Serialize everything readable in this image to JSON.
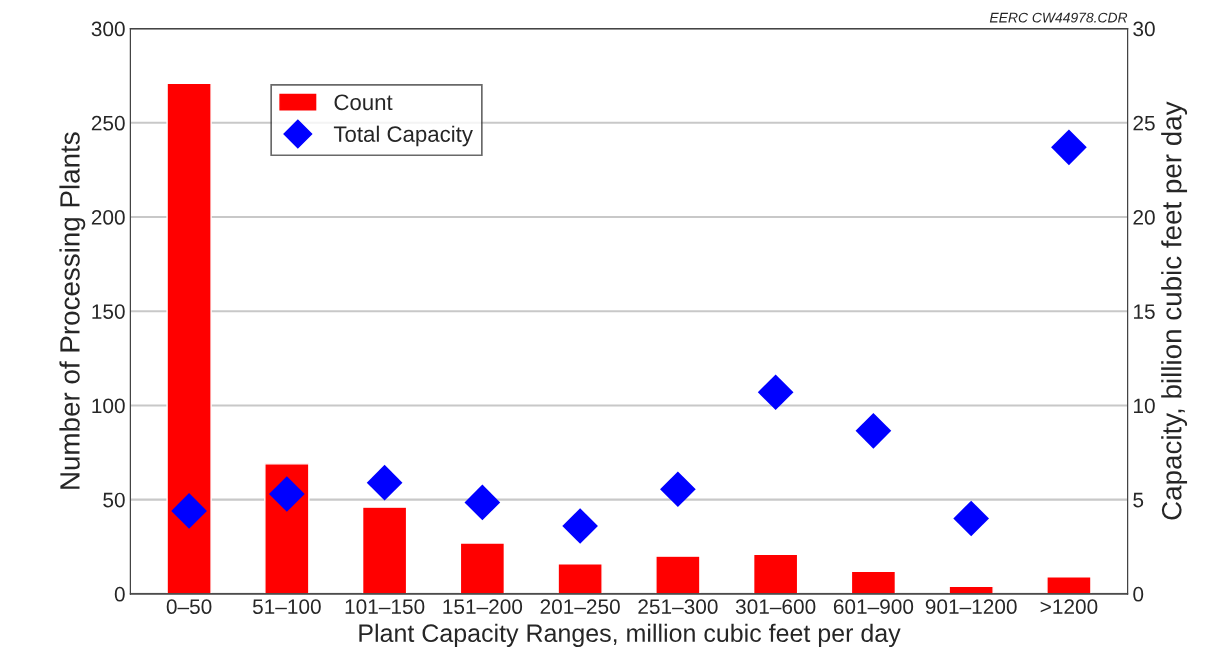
{
  "chart_data": {
    "type": "bar",
    "xlabel": "Plant Capacity Ranges, million cubic feet per day",
    "ylabel": "Number of Processing Plants",
    "y2label": "Capacity, billion cubic feet per day",
    "annotations": [
      "EERC CW44978.CDR"
    ],
    "categories": [
      "0–50",
      "51–100",
      "101–150",
      "151–200",
      "201–250",
      "251–300",
      "301–600",
      "601–900",
      "901–1200",
      ">1200"
    ],
    "series": [
      {
        "name": "Count",
        "color": "#ff0000",
        "values": [
          271,
          69,
          46,
          27,
          16,
          20,
          21,
          12,
          4,
          9
        ]
      },
      {
        "name": "Total Capacity",
        "type": "scatter",
        "axis": "y2",
        "marker": "diamond",
        "color": "#0000ff",
        "values": [
          4.4,
          5.3,
          5.9,
          4.85,
          3.6,
          5.55,
          10.7,
          8.65,
          4.0,
          23.7
        ]
      }
    ],
    "ylim": [
      0,
      300
    ],
    "yticks": [
      0,
      50,
      100,
      150,
      200,
      250,
      300
    ],
    "y2lim": [
      0,
      30
    ],
    "y2ticks": [
      0,
      5,
      10,
      15,
      20,
      25,
      30
    ],
    "grid": "y",
    "legend": "top left"
  }
}
